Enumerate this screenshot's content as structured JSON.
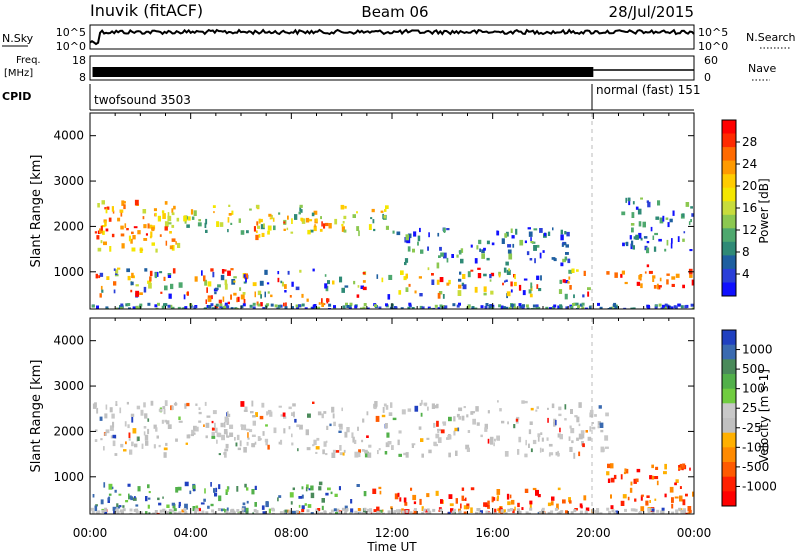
{
  "header": {
    "station": "Inuvik (fitACF)",
    "beam": "Beam 06",
    "date": "28/Jul/2015"
  },
  "small_panels": {
    "nsky_label": "N.Sky",
    "nsearch_label": "N.Search",
    "nsky_ticks": [
      "10^5",
      "10^0"
    ],
    "nsearch_ticks": [
      "10^5",
      "10^0"
    ],
    "freq_label_1": "Freq.",
    "freq_label_2": "[MHz]",
    "freq_ticks": [
      "18",
      "8"
    ],
    "nave_label": "Nave",
    "nave_ticks": [
      "60",
      "0"
    ],
    "cpid_label": "CPID",
    "cpid_mode_1": "twofsound 3503",
    "cpid_mode_2": "normal (fast) 151"
  },
  "axes": {
    "ylabel": "Slant Range [km]",
    "xlabel": "Time UT",
    "yticks": [
      "4000",
      "3000",
      "2000",
      "1000"
    ],
    "xticks": [
      "00:00",
      "04:00",
      "08:00",
      "12:00",
      "16:00",
      "20:00",
      "00:00"
    ]
  },
  "chart_data": [
    {
      "type": "heatmap",
      "title": "Power",
      "ylabel": "Slant Range [km]",
      "xlabel": "Time UT",
      "ylim": [
        180,
        4500
      ],
      "xlim": [
        0,
        24
      ],
      "colorbar": {
        "label": "Power [dB]",
        "ticks": [
          "28",
          "24",
          "20",
          "16",
          "12",
          "8",
          "4"
        ],
        "colors": [
          "#ff0000",
          "#ff2a00",
          "#ff6a00",
          "#ff9a00",
          "#ffcc00",
          "#f4e600",
          "#c8dc3c",
          "#8cc850",
          "#4ea86e",
          "#2f8a76",
          "#1e5fa0",
          "#2a3fd8",
          "#1010ff"
        ]
      },
      "regions": [
        {
          "t": [
            0.1,
            3.6
          ],
          "r": [
            1500,
            2600
          ],
          "level": "high"
        },
        {
          "t": [
            0.1,
            2.5
          ],
          "r": [
            1700,
            2100
          ],
          "level": "very-high"
        },
        {
          "t": [
            3.0,
            12.0
          ],
          "r": [
            1900,
            2500
          ],
          "level": "mid"
        },
        {
          "t": [
            6.5,
            9.5
          ],
          "r": [
            1800,
            2200
          ],
          "level": "high"
        },
        {
          "t": [
            4.5,
            10.0
          ],
          "r": [
            200,
            500
          ],
          "level": "very-high"
        },
        {
          "t": [
            0.1,
            20.0
          ],
          "r": [
            500,
            1100
          ],
          "level": "mixed"
        },
        {
          "t": [
            12.0,
            19.0
          ],
          "r": [
            1200,
            2000
          ],
          "level": "low"
        },
        {
          "t": [
            20.5,
            24.0
          ],
          "r": [
            700,
            1200
          ],
          "level": "very-high"
        },
        {
          "t": [
            21.0,
            24.0
          ],
          "r": [
            1500,
            2700
          ],
          "level": "low"
        }
      ]
    },
    {
      "type": "heatmap",
      "title": "Velocity",
      "ylabel": "Slant Range [km]",
      "xlabel": "Time UT",
      "ylim": [
        180,
        4500
      ],
      "xlim": [
        0,
        24
      ],
      "colorbar": {
        "label": "Velocity [m s-1]",
        "ticks": [
          "1000",
          "500",
          "100",
          "25",
          "-25",
          "-100",
          "-500",
          "-1000"
        ],
        "colors": [
          "#2040c0",
          "#3a6ab0",
          "#4a8a5a",
          "#52b04a",
          "#70cc40",
          "#c8c8c8",
          "#c0c0c0",
          "#ffb000",
          "#ff8a00",
          "#ff5a00",
          "#ff2000",
          "#ff0000"
        ]
      },
      "regions": [
        {
          "t": [
            0.1,
            20.5
          ],
          "r": [
            1500,
            2700
          ],
          "level": "near-zero"
        },
        {
          "t": [
            0.1,
            11.0
          ],
          "r": [
            200,
            900
          ],
          "level": "positive"
        },
        {
          "t": [
            11.0,
            20.0
          ],
          "r": [
            200,
            800
          ],
          "level": "negative"
        },
        {
          "t": [
            20.5,
            24.0
          ],
          "r": [
            300,
            1300
          ],
          "level": "negative"
        }
      ]
    }
  ]
}
